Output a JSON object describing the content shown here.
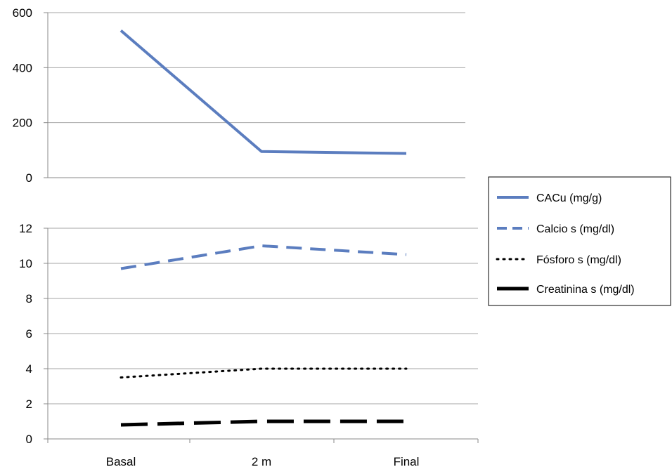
{
  "chart_data": [
    {
      "type": "line",
      "categories": [
        "Basal",
        "2 m",
        "Final"
      ],
      "ylim": [
        0,
        600
      ],
      "yticks": [
        0,
        200,
        400,
        600
      ],
      "grid": true,
      "series": [
        {
          "name": "CACu (mg/g)",
          "values": [
            535,
            95,
            88
          ],
          "color": "#5B7DBF",
          "style": "solid"
        }
      ]
    },
    {
      "type": "line",
      "categories": [
        "Basal",
        "2 m",
        "Final"
      ],
      "ylim": [
        0,
        12
      ],
      "yticks": [
        0,
        2,
        4,
        6,
        8,
        10,
        12
      ],
      "grid": true,
      "series": [
        {
          "name": "Calcio s (mg/dl)",
          "values": [
            9.7,
            11.0,
            10.5
          ],
          "color": "#5B7DBF",
          "style": "dashed"
        },
        {
          "name": "Fósforo s (mg/dl)",
          "values": [
            3.5,
            4.0,
            4.0
          ],
          "color": "#000000",
          "style": "dotted"
        },
        {
          "name": "Creatinina s (mg/dl)",
          "values": [
            0.8,
            1.0,
            1.0
          ],
          "color": "#000000",
          "style": "longdash"
        }
      ]
    }
  ],
  "legend": {
    "placement": "right",
    "entries": [
      "CACu (mg/g)",
      "Calcio s (mg/dl)",
      "Fósforo s (mg/dl)",
      "Creatinina s (mg/dl)"
    ]
  }
}
